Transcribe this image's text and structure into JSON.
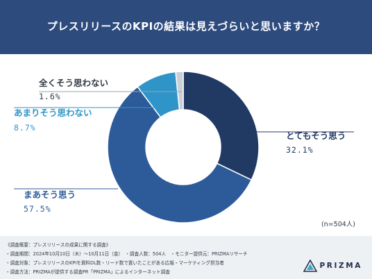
{
  "header": {
    "title": "プレスリリースのKPIの結果は見えづらいと思いますか？"
  },
  "chart_data": {
    "type": "pie",
    "title": "プレスリリースのKPIの結果は見えづらいと思いますか？",
    "note": "(n=504人)",
    "slices": [
      {
        "label": "とてもそう思う",
        "value": 32.1,
        "display": "32.1%",
        "color": "#213a63"
      },
      {
        "label": "まあそう思う",
        "value": 57.5,
        "display": "57.5%",
        "color": "#2d5b9a"
      },
      {
        "label": "あまりそう思わない",
        "value": 8.7,
        "display": "8.7%",
        "color": "#2f95c8"
      },
      {
        "label": "全くそう思わない",
        "value": 1.6,
        "display": "1.6%",
        "color": "#c9cfd6"
      }
    ]
  },
  "footer": {
    "lines": [
      "《調査概要：プレスリリースの成果に関する調査》",
      "・調査期間：2024年10月10日（木）〜10月11日（金）　・調査人数：504人　・モニター提供元：PRIZMAリサーチ",
      "・調査対象：プレスリリースのKPIを資料DL数・リード数で置いたことがある広報・マーケティング担当者",
      "・調査方法：PRIZMAが提供する調査PR「PRIZMA」によるインターネット調査"
    ]
  },
  "logo": {
    "text": "PRIZMA",
    "icon": "prizma-logo-icon",
    "color": "#1f2d4a",
    "accent": "#3aa6c8"
  }
}
